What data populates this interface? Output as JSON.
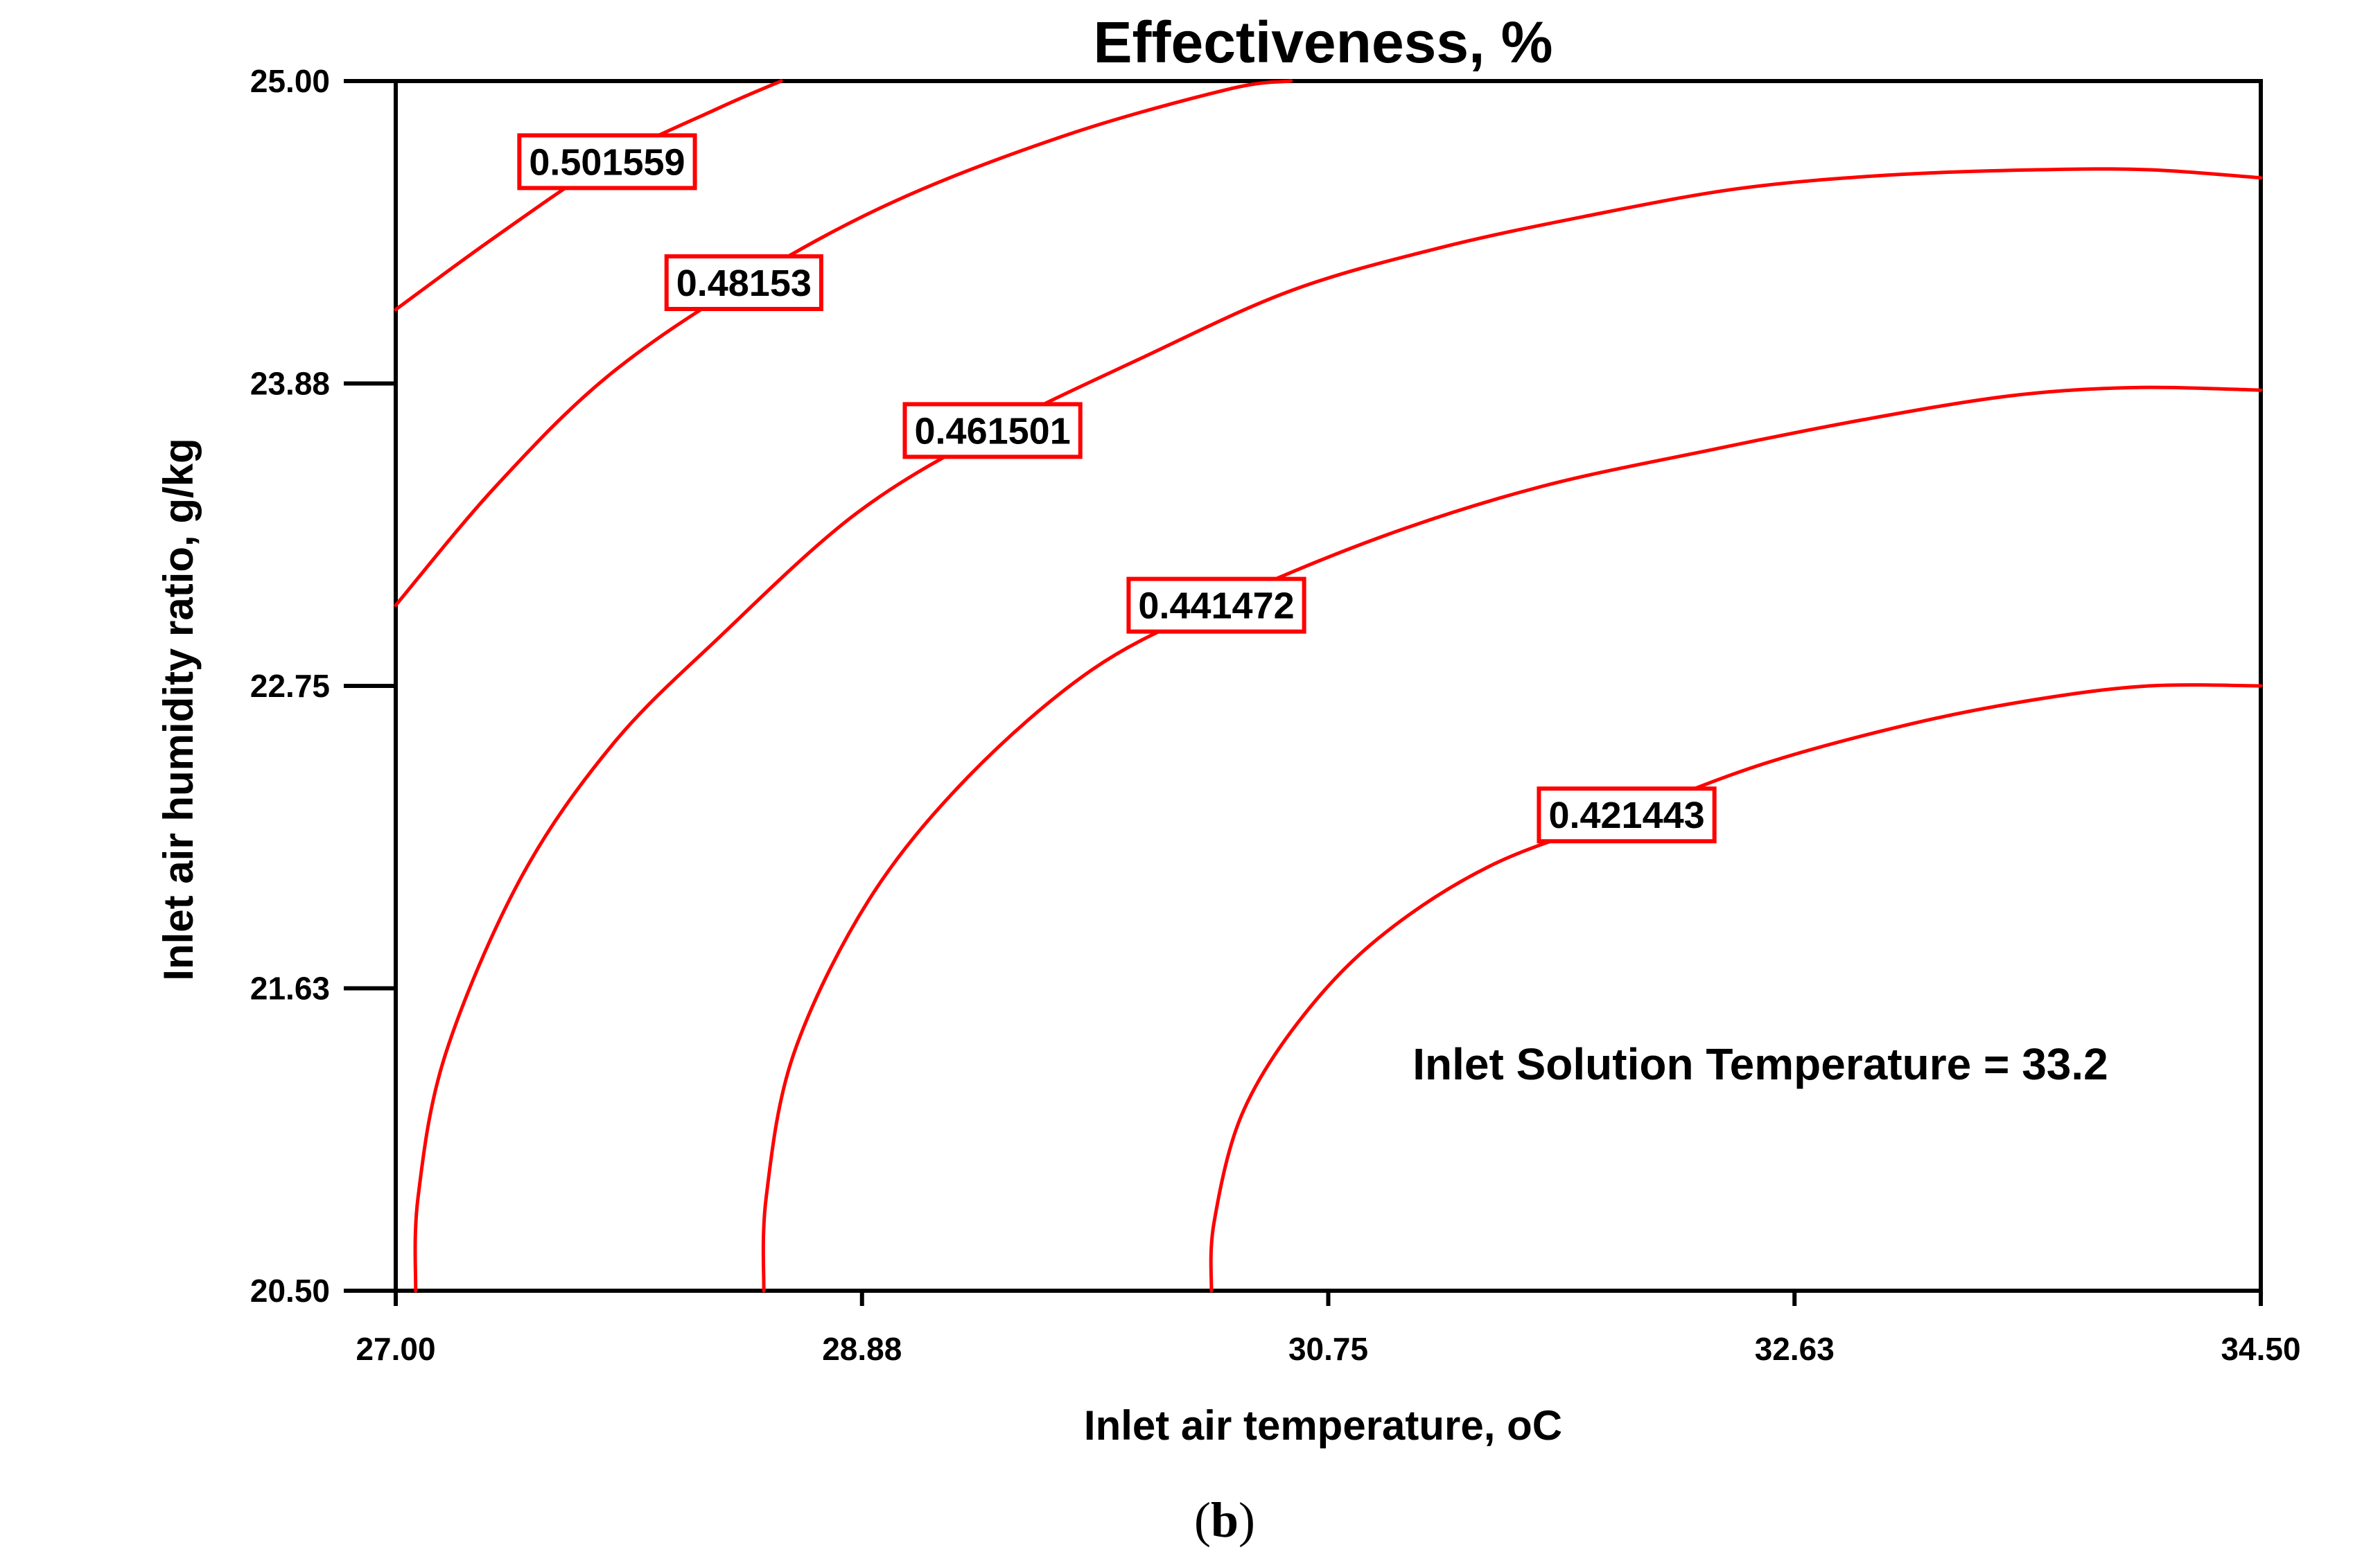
{
  "chart_data": {
    "type": "contour",
    "title": "Effectiveness, %",
    "xlabel": "Inlet air temperature, oC",
    "ylabel": "Inlet air humidity ratio, g/kg",
    "xlim": [
      27.0,
      34.5
    ],
    "ylim": [
      20.5,
      25.0
    ],
    "x_ticks": [
      "27.00",
      "28.88",
      "30.75",
      "32.63",
      "34.50"
    ],
    "x_tick_values": [
      27.0,
      28.875,
      30.75,
      32.625,
      34.5
    ],
    "y_ticks": [
      "20.50",
      "21.63",
      "22.75",
      "23.88",
      "25.00"
    ],
    "y_tick_values": [
      20.5,
      21.625,
      22.75,
      23.875,
      25.0
    ],
    "annotation": "Inlet Solution Temperature = 33.2",
    "line_color": "#ff0000",
    "contours": [
      {
        "level": "0.501559",
        "label_at": [
          27.85,
          24.7
        ],
        "points": [
          [
            27.0,
            24.15
          ],
          [
            27.4,
            24.42
          ],
          [
            27.85,
            24.7
          ],
          [
            28.3,
            24.9
          ],
          [
            28.55,
            25.0
          ]
        ]
      },
      {
        "level": "0.48153",
        "label_at": [
          28.4,
          24.25
        ],
        "points": [
          [
            27.0,
            23.05
          ],
          [
            27.4,
            23.49
          ],
          [
            27.85,
            23.9
          ],
          [
            28.4,
            24.25
          ],
          [
            29.0,
            24.55
          ],
          [
            29.7,
            24.8
          ],
          [
            30.35,
            24.97
          ],
          [
            30.6,
            25.0
          ]
        ]
      },
      {
        "level": "0.461501",
        "label_at": [
          29.4,
          23.7
        ],
        "points": [
          [
            27.08,
            20.5
          ],
          [
            27.09,
            20.85
          ],
          [
            27.2,
            21.38
          ],
          [
            27.5,
            22.03
          ],
          [
            27.87,
            22.53
          ],
          [
            28.3,
            22.93
          ],
          [
            28.85,
            23.39
          ],
          [
            29.4,
            23.7
          ],
          [
            30.0,
            23.97
          ],
          [
            30.6,
            24.22
          ],
          [
            31.2,
            24.38
          ],
          [
            31.8,
            24.5
          ],
          [
            32.4,
            24.6
          ],
          [
            33.0,
            24.65
          ],
          [
            33.6,
            24.67
          ],
          [
            34.05,
            24.67
          ],
          [
            34.5,
            24.64
          ]
        ]
      },
      {
        "level": "0.441472",
        "label_at": [
          30.3,
          23.05
        ],
        "points": [
          [
            28.48,
            20.5
          ],
          [
            28.49,
            20.85
          ],
          [
            28.6,
            21.38
          ],
          [
            28.9,
            21.95
          ],
          [
            29.3,
            22.41
          ],
          [
            29.8,
            22.81
          ],
          [
            30.3,
            23.05
          ],
          [
            30.95,
            23.3
          ],
          [
            31.6,
            23.49
          ],
          [
            32.3,
            23.63
          ],
          [
            32.9,
            23.74
          ],
          [
            33.5,
            23.83
          ],
          [
            34.0,
            23.86
          ],
          [
            34.5,
            23.85
          ]
        ]
      },
      {
        "level": "0.421443",
        "label_at": [
          31.95,
          22.27
        ],
        "points": [
          [
            30.28,
            20.5
          ],
          [
            30.29,
            20.75
          ],
          [
            30.4,
            21.15
          ],
          [
            30.63,
            21.5
          ],
          [
            30.95,
            21.81
          ],
          [
            31.4,
            22.08
          ],
          [
            31.95,
            22.27
          ],
          [
            32.5,
            22.46
          ],
          [
            33.1,
            22.61
          ],
          [
            33.6,
            22.7
          ],
          [
            34.05,
            22.75
          ],
          [
            34.5,
            22.75
          ]
        ]
      }
    ]
  },
  "caption": "b"
}
